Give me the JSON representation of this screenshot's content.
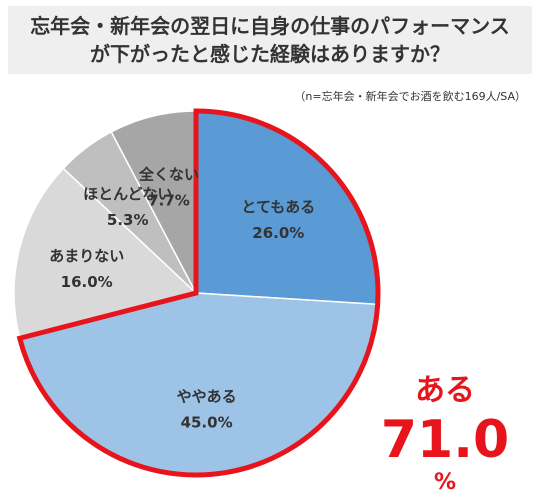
{
  "title": {
    "line1": "忘年会・新年会の翌日に自身の仕事のパフォーマンス",
    "line2": "が下がったと感じた経験はありますか？"
  },
  "note": "（n=忘年会・新年会でお酒を飲む169人/SA）",
  "highlight": {
    "label": "ある",
    "value": "71.0",
    "unit": "%",
    "color": "#e8141c"
  },
  "chart_data": {
    "type": "pie",
    "start": "12 o'clock",
    "direction": "clockwise",
    "slices": [
      {
        "label": "とてもある",
        "value": 26.0,
        "display": "26.0%",
        "color": "#5b9bd5"
      },
      {
        "label": "ややある",
        "value": 45.0,
        "display": "45.0%",
        "color": "#9dc3e6"
      },
      {
        "label": "あまりない",
        "value": 16.0,
        "display": "16.0%",
        "color": "#d9d9d9"
      },
      {
        "label": "ほとんどない",
        "value": 5.3,
        "display": "5.3%",
        "color": "#bfbfbf"
      },
      {
        "label": "全くない",
        "value": 7.7,
        "display": "7.7%",
        "color": "#a6a6a6"
      }
    ],
    "highlight_slices": [
      "とてもある",
      "ややある"
    ]
  }
}
